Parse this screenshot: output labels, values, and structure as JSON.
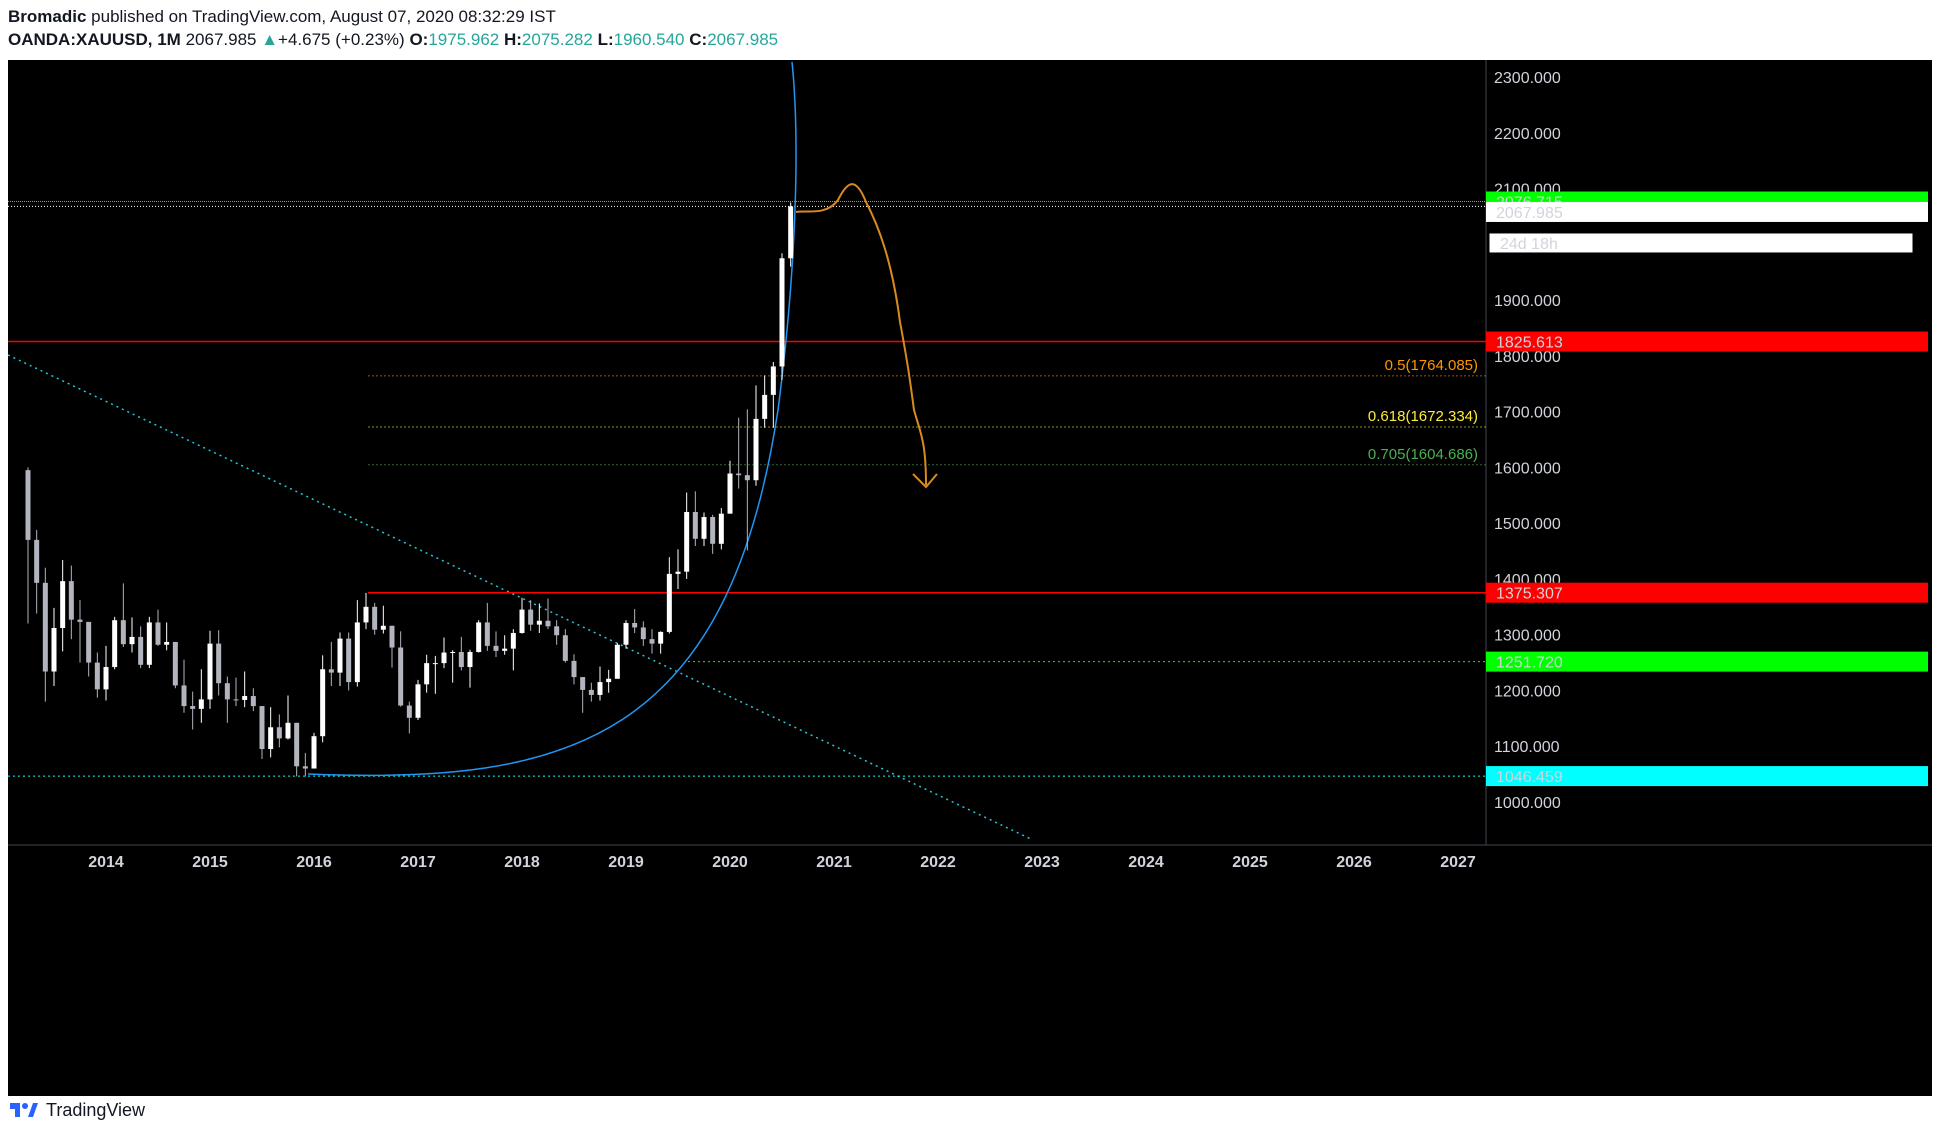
{
  "header": {
    "author": "Bromadic",
    "published": "published on TradingView.com, August 07, 2020 08:32:29 IST",
    "symbol": "OANDA:XAUUSD, 1M",
    "last": "2067.985",
    "change": "+4.675 (+0.23%)",
    "open_label": "O:",
    "open": "1975.962",
    "high_label": "H:",
    "high": "2075.282",
    "low_label": "L:",
    "low": "1960.540",
    "close_label": "C:",
    "close": "2067.985"
  },
  "footer": {
    "brand": "TradingView"
  },
  "colors": {
    "background": "#000000",
    "up_candle": "#ffffff",
    "down_candle": "#b2b5be",
    "red_level": "#ff0000",
    "green_level": "#00ff00",
    "cyan_level": "#00ffff",
    "arc": "#2196f3",
    "trendline": "#26c6da",
    "projection": "#d98a1f",
    "fib_05": "#ff9800",
    "fib_0618": "#ffeb3b",
    "fib_0705": "#4caf50"
  },
  "chart_data": {
    "type": "candlestick",
    "interval": "1M",
    "y_range": [
      920,
      2370
    ],
    "x_range": [
      "2013-03",
      "2027-03"
    ],
    "y_ticks": [
      "1000.000",
      "1100.000",
      "1200.000",
      "1300.000",
      "1400.000",
      "1500.000",
      "1600.000",
      "1700.000",
      "1800.000",
      "1900.000",
      "2100.000",
      "2200.000",
      "2300.000"
    ],
    "x_ticks": [
      "2014",
      "2015",
      "2016",
      "2017",
      "2018",
      "2019",
      "2020",
      "2021",
      "2022",
      "2023",
      "2024",
      "2025",
      "2026",
      "2027"
    ],
    "candles": [
      [
        "2013-04",
        1595,
        1600,
        1320,
        1470
      ],
      [
        "2013-05",
        1470,
        1488,
        1338,
        1393
      ],
      [
        "2013-06",
        1393,
        1420,
        1180,
        1234
      ],
      [
        "2013-07",
        1234,
        1348,
        1208,
        1312
      ],
      [
        "2013-08",
        1312,
        1434,
        1270,
        1396
      ],
      [
        "2013-09",
        1396,
        1424,
        1292,
        1327
      ],
      [
        "2013-10",
        1327,
        1362,
        1250,
        1323
      ],
      [
        "2013-11",
        1323,
        1322,
        1225,
        1250
      ],
      [
        "2013-12",
        1250,
        1268,
        1187,
        1202
      ],
      [
        "2014-01",
        1202,
        1280,
        1182,
        1242
      ],
      [
        "2014-02",
        1242,
        1332,
        1238,
        1326
      ],
      [
        "2014-03",
        1326,
        1392,
        1278,
        1283
      ],
      [
        "2014-04",
        1283,
        1331,
        1268,
        1296
      ],
      [
        "2014-05",
        1296,
        1315,
        1240,
        1246
      ],
      [
        "2014-06",
        1246,
        1332,
        1240,
        1322
      ],
      [
        "2014-07",
        1322,
        1345,
        1280,
        1282
      ],
      [
        "2014-08",
        1282,
        1322,
        1272,
        1287
      ],
      [
        "2014-09",
        1287,
        1287,
        1204,
        1209
      ],
      [
        "2014-10",
        1209,
        1255,
        1160,
        1172
      ],
      [
        "2014-11",
        1172,
        1198,
        1130,
        1167
      ],
      [
        "2014-12",
        1167,
        1238,
        1142,
        1184
      ],
      [
        "2015-01",
        1184,
        1307,
        1167,
        1284
      ],
      [
        "2015-02",
        1284,
        1308,
        1191,
        1213
      ],
      [
        "2015-03",
        1213,
        1225,
        1142,
        1184
      ],
      [
        "2015-04",
        1184,
        1223,
        1172,
        1183
      ],
      [
        "2015-05",
        1183,
        1234,
        1170,
        1190
      ],
      [
        "2015-06",
        1190,
        1204,
        1163,
        1172
      ],
      [
        "2015-07",
        1172,
        1168,
        1077,
        1095
      ],
      [
        "2015-08",
        1095,
        1170,
        1080,
        1134
      ],
      [
        "2015-09",
        1134,
        1157,
        1098,
        1114
      ],
      [
        "2015-10",
        1114,
        1191,
        1112,
        1142
      ],
      [
        "2015-11",
        1142,
        1142,
        1046,
        1064
      ],
      [
        "2015-12",
        1064,
        1088,
        1046,
        1060
      ],
      [
        "2016-01",
        1060,
        1124,
        1061,
        1118
      ],
      [
        "2016-02",
        1118,
        1263,
        1107,
        1238
      ],
      [
        "2016-03",
        1238,
        1287,
        1208,
        1232
      ],
      [
        "2016-04",
        1232,
        1304,
        1208,
        1293
      ],
      [
        "2016-05",
        1293,
        1304,
        1200,
        1215
      ],
      [
        "2016-06",
        1215,
        1362,
        1207,
        1322
      ],
      [
        "2016-07",
        1322,
        1375,
        1310,
        1350
      ],
      [
        "2016-08",
        1350,
        1357,
        1300,
        1309
      ],
      [
        "2016-09",
        1309,
        1352,
        1302,
        1316
      ],
      [
        "2016-10",
        1316,
        1316,
        1241,
        1277
      ],
      [
        "2016-11",
        1277,
        1306,
        1171,
        1173
      ],
      [
        "2016-12",
        1173,
        1180,
        1123,
        1151
      ],
      [
        "2017-01",
        1151,
        1219,
        1147,
        1211
      ],
      [
        "2017-02",
        1211,
        1264,
        1196,
        1249
      ],
      [
        "2017-03",
        1249,
        1262,
        1194,
        1249
      ],
      [
        "2017-04",
        1249,
        1295,
        1240,
        1268
      ],
      [
        "2017-05",
        1268,
        1272,
        1214,
        1269
      ],
      [
        "2017-06",
        1269,
        1296,
        1236,
        1242
      ],
      [
        "2017-07",
        1242,
        1273,
        1205,
        1269
      ],
      [
        "2017-08",
        1269,
        1326,
        1268,
        1322
      ],
      [
        "2017-09",
        1322,
        1357,
        1271,
        1280
      ],
      [
        "2017-10",
        1280,
        1306,
        1260,
        1271
      ],
      [
        "2017-11",
        1271,
        1299,
        1264,
        1275
      ],
      [
        "2017-12",
        1275,
        1310,
        1236,
        1303
      ],
      [
        "2018-01",
        1303,
        1366,
        1302,
        1345
      ],
      [
        "2018-02",
        1345,
        1362,
        1307,
        1318
      ],
      [
        "2018-03",
        1318,
        1356,
        1303,
        1325
      ],
      [
        "2018-04",
        1325,
        1365,
        1310,
        1315
      ],
      [
        "2018-05",
        1315,
        1326,
        1282,
        1299
      ],
      [
        "2018-06",
        1299,
        1310,
        1250,
        1253
      ],
      [
        "2018-07",
        1253,
        1265,
        1211,
        1224
      ],
      [
        "2018-08",
        1224,
        1224,
        1160,
        1201
      ],
      [
        "2018-09",
        1201,
        1214,
        1180,
        1192
      ],
      [
        "2018-10",
        1192,
        1243,
        1182,
        1215
      ],
      [
        "2018-11",
        1215,
        1237,
        1196,
        1221
      ],
      [
        "2018-12",
        1221,
        1285,
        1221,
        1282
      ],
      [
        "2019-01",
        1282,
        1326,
        1275,
        1321
      ],
      [
        "2019-02",
        1321,
        1346,
        1303,
        1313
      ],
      [
        "2019-03",
        1313,
        1324,
        1280,
        1292
      ],
      [
        "2019-04",
        1292,
        1310,
        1266,
        1284
      ],
      [
        "2019-05",
        1284,
        1306,
        1266,
        1305
      ],
      [
        "2019-06",
        1305,
        1439,
        1302,
        1409
      ],
      [
        "2019-07",
        1409,
        1453,
        1382,
        1413
      ],
      [
        "2019-08",
        1413,
        1555,
        1400,
        1520
      ],
      [
        "2019-09",
        1520,
        1557,
        1459,
        1472
      ],
      [
        "2019-10",
        1472,
        1519,
        1459,
        1511
      ],
      [
        "2019-11",
        1511,
        1515,
        1445,
        1463
      ],
      [
        "2019-12",
        1463,
        1527,
        1453,
        1517
      ],
      [
        "2020-01",
        1517,
        1612,
        1517,
        1589
      ],
      [
        "2020-02",
        1589,
        1689,
        1562,
        1586
      ],
      [
        "2020-03",
        1586,
        1704,
        1451,
        1577
      ],
      [
        "2020-04",
        1577,
        1747,
        1567,
        1687
      ],
      [
        "2020-05",
        1687,
        1765,
        1671,
        1730
      ],
      [
        "2020-06",
        1730,
        1789,
        1671,
        1781
      ],
      [
        "2020-07",
        1781,
        1984,
        1757,
        1975
      ],
      [
        "2020-08",
        1975,
        2075,
        1960,
        2068
      ]
    ],
    "levels": [
      {
        "price": 2076.715,
        "color": "#00ff00",
        "label": "2076.715"
      },
      {
        "price": 1825.613,
        "color": "#ff0000",
        "label": "1825.613"
      },
      {
        "price": 1375.307,
        "color": "#ff0000",
        "label": "1375.307"
      },
      {
        "price": 1251.72,
        "color": "#00ff00",
        "label": "1251.720"
      },
      {
        "price": 1046.459,
        "color": "#00ffff",
        "label": "1046.459"
      }
    ],
    "last_price_label": "2067.985",
    "countdown_label": "24d 18h",
    "fib_levels": [
      {
        "label": "0.5(1764.085)",
        "price": 1764.085,
        "color": "#ff9800"
      },
      {
        "label": "0.618(1672.334)",
        "price": 1672.334,
        "color": "#ffeb3b"
      },
      {
        "label": "0.705(1604.686)",
        "price": 1604.686,
        "color": "#4caf50"
      }
    ]
  }
}
